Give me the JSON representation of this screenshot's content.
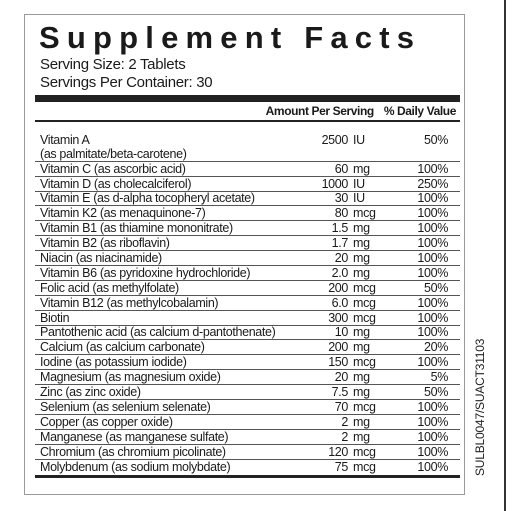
{
  "title": "Supplement Facts",
  "serving_size": "Serving Size: 2 Tablets",
  "servings_per_container": "Servings Per Container: 30",
  "header": {
    "amount": "Amount Per Serving",
    "dv": "% Daily Value"
  },
  "product_code": "SULBL0047/SUACT31103",
  "rows": [
    {
      "name": "Vitamin A",
      "amount": "2500",
      "unit": "IU",
      "dv": "50%"
    },
    {
      "name": "(as palmitate/beta-carotene)",
      "amount": "",
      "unit": "",
      "dv": ""
    },
    {
      "name": "Vitamin C (as ascorbic acid)",
      "amount": "60",
      "unit": "mg",
      "dv": "100%"
    },
    {
      "name": "Vitamin D (as cholecalciferol)",
      "amount": "1000",
      "unit": "IU",
      "dv": "250%"
    },
    {
      "name": "Vitamin E (as d-alpha tocopheryl acetate)",
      "amount": "30",
      "unit": "IU",
      "dv": "100%"
    },
    {
      "name": "Vitamin K2 (as menaquinone-7)",
      "amount": "80",
      "unit": "mcg",
      "dv": "100%"
    },
    {
      "name": "Vitamin B1 (as thiamine mononitrate)",
      "amount": "1.5",
      "unit": "mg",
      "dv": "100%"
    },
    {
      "name": "Vitamin B2 (as riboflavin)",
      "amount": "1.7",
      "unit": "mg",
      "dv": "100%"
    },
    {
      "name": "Niacin (as niacinamide)",
      "amount": "20",
      "unit": "mg",
      "dv": "100%"
    },
    {
      "name": "Vitamin B6 (as pyridoxine hydrochloride)",
      "amount": "2.0",
      "unit": "mg",
      "dv": "100%"
    },
    {
      "name": "Folic acid (as methylfolate)",
      "amount": "200",
      "unit": "mcg",
      "dv": "50%"
    },
    {
      "name": "Vitamin B12 (as methylcobalamin)",
      "amount": "6.0",
      "unit": "mcg",
      "dv": "100%"
    },
    {
      "name": "Biotin",
      "amount": "300",
      "unit": "mcg",
      "dv": "100%"
    },
    {
      "name": "Pantothenic acid (as calcium d-pantothenate)",
      "amount": "10",
      "unit": "mg",
      "dv": "100%"
    },
    {
      "name": "Calcium (as calcium carbonate)",
      "amount": "200",
      "unit": "mg",
      "dv": "20%"
    },
    {
      "name": "Iodine (as potassium iodide)",
      "amount": "150",
      "unit": "mcg",
      "dv": "100%"
    },
    {
      "name": "Magnesium (as magnesium oxide)",
      "amount": "20",
      "unit": "mg",
      "dv": "5%"
    },
    {
      "name": "Zinc (as zinc oxide)",
      "amount": "7.5",
      "unit": "mg",
      "dv": "50%"
    },
    {
      "name": "Selenium (as selenium selenate)",
      "amount": "70",
      "unit": "mcg",
      "dv": "100%"
    },
    {
      "name": "Copper (as copper oxide)",
      "amount": "2",
      "unit": "mg",
      "dv": "100%"
    },
    {
      "name": "Manganese (as manganese sulfate)",
      "amount": "2",
      "unit": "mg",
      "dv": "100%"
    },
    {
      "name": "Chromium (as chromium picolinate)",
      "amount": "120",
      "unit": "mcg",
      "dv": "100%"
    },
    {
      "name": "Molybdenum (as sodium molybdate)",
      "amount": "75",
      "unit": "mcg",
      "dv": "100%"
    }
  ]
}
